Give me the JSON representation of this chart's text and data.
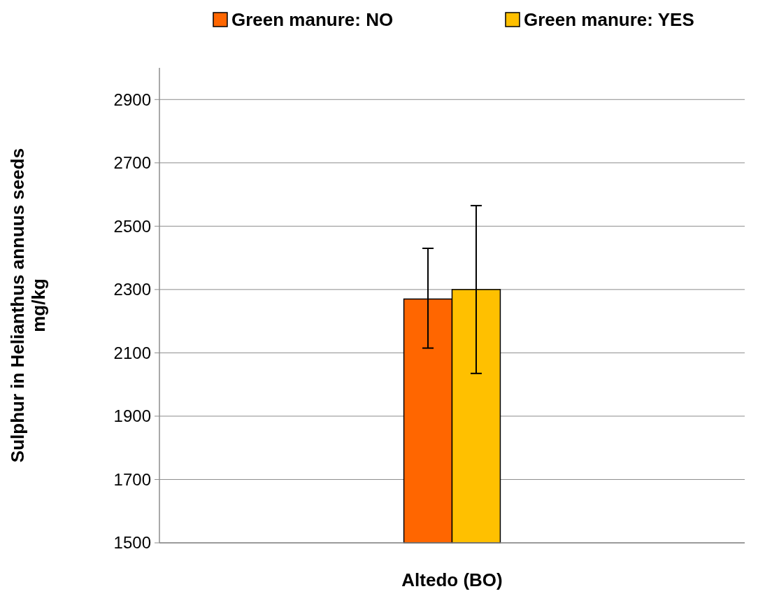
{
  "chart_data": {
    "type": "bar",
    "ylabel": "Sulphur in Helianthus annuus seeds mg/kg",
    "categories": [
      "Altedo (BO)"
    ],
    "series": [
      {
        "name": "Green manure: NO",
        "color": "#ff6600",
        "values": [
          2270
        ],
        "errors": [
          [
            2115,
            2430
          ]
        ]
      },
      {
        "name": "Green manure: YES",
        "color": "#ffc000",
        "values": [
          2300
        ],
        "errors": [
          [
            2035,
            2565
          ]
        ]
      }
    ],
    "ylim": [
      1500,
      3000
    ],
    "yticks": [
      1500,
      1700,
      1900,
      2100,
      2300,
      2500,
      2700,
      2900
    ],
    "grid": "y",
    "legend": "top"
  }
}
